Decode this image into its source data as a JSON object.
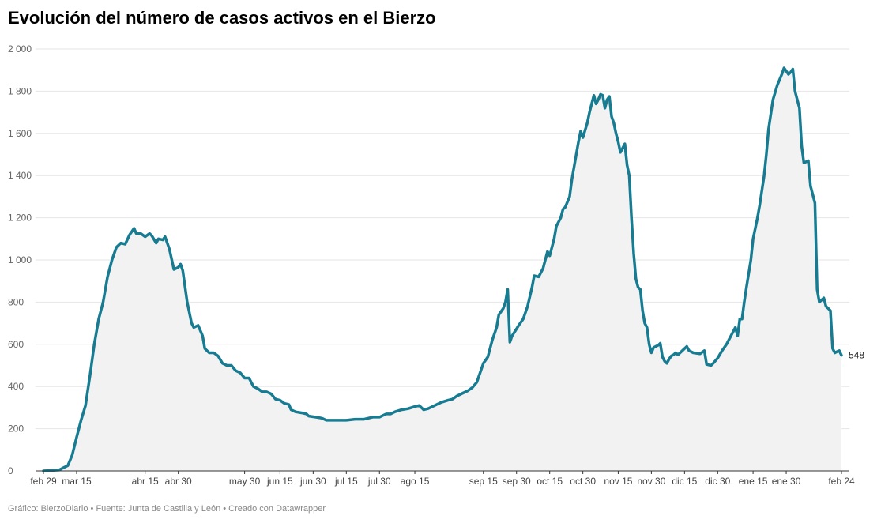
{
  "title": "Evolución del número de casos activos en el Bierzo",
  "footer": "Gráfico: BierzoDiario • Fuente: Junta de Castilla y León • Creado con Datawrapper",
  "colors": {
    "line": "#177b91",
    "area": "#f2f2f2",
    "grid": "#e6e6e6"
  },
  "chart_data": {
    "type": "area",
    "title": "Evolución del número de casos activos en el Bierzo",
    "xlabel": "",
    "ylabel": "",
    "ylim": [
      0,
      2000
    ],
    "y_ticks": [
      0,
      200,
      400,
      600,
      800,
      1000,
      1200,
      1400,
      1600,
      1800,
      2000
    ],
    "y_tick_labels": [
      "0",
      "200",
      "400",
      "600",
      "800",
      "1 000",
      "1 200",
      "1 400",
      "1 600",
      "1 800",
      "2 000"
    ],
    "x_ticks": [
      {
        "date": "2020-02-29",
        "label": "feb 29"
      },
      {
        "date": "2020-03-15",
        "label": "mar 15"
      },
      {
        "date": "2020-04-15",
        "label": "abr 15"
      },
      {
        "date": "2020-04-30",
        "label": "abr 30"
      },
      {
        "date": "2020-05-30",
        "label": "may 30"
      },
      {
        "date": "2020-06-15",
        "label": "jun 15"
      },
      {
        "date": "2020-06-30",
        "label": "jun 30"
      },
      {
        "date": "2020-07-15",
        "label": "jul 15"
      },
      {
        "date": "2020-07-30",
        "label": "jul 30"
      },
      {
        "date": "2020-08-15",
        "label": "ago 15"
      },
      {
        "date": "2020-09-15",
        "label": "sep 15"
      },
      {
        "date": "2020-09-30",
        "label": "sep 30"
      },
      {
        "date": "2020-10-15",
        "label": "oct 15"
      },
      {
        "date": "2020-10-30",
        "label": "oct 30"
      },
      {
        "date": "2020-11-15",
        "label": "nov 15"
      },
      {
        "date": "2020-11-30",
        "label": "nov 30"
      },
      {
        "date": "2020-12-15",
        "label": "dic 15"
      },
      {
        "date": "2020-12-30",
        "label": "dic 30"
      },
      {
        "date": "2021-01-15",
        "label": "ene 15"
      },
      {
        "date": "2021-01-30",
        "label": "ene 30"
      },
      {
        "date": "2021-02-24",
        "label": "feb 24"
      }
    ],
    "grid": true,
    "legend": "none",
    "end_label": "548",
    "series": [
      {
        "values": [
          [
            "2020-02-29",
            0
          ],
          [
            "2020-03-03",
            2
          ],
          [
            "2020-03-07",
            4
          ],
          [
            "2020-03-09",
            15
          ],
          [
            "2020-03-11",
            25
          ],
          [
            "2020-03-13",
            75
          ],
          [
            "2020-03-15",
            160
          ],
          [
            "2020-03-17",
            240
          ],
          [
            "2020-03-19",
            310
          ],
          [
            "2020-03-21",
            450
          ],
          [
            "2020-03-23",
            600
          ],
          [
            "2020-03-25",
            720
          ],
          [
            "2020-03-27",
            800
          ],
          [
            "2020-03-29",
            920
          ],
          [
            "2020-03-31",
            1000
          ],
          [
            "2020-04-02",
            1060
          ],
          [
            "2020-04-04",
            1080
          ],
          [
            "2020-04-06",
            1075
          ],
          [
            "2020-04-08",
            1120
          ],
          [
            "2020-04-10",
            1150
          ],
          [
            "2020-04-11",
            1125
          ],
          [
            "2020-04-13",
            1125
          ],
          [
            "2020-04-15",
            1110
          ],
          [
            "2020-04-17",
            1125
          ],
          [
            "2020-04-18",
            1115
          ],
          [
            "2020-04-20",
            1080
          ],
          [
            "2020-04-21",
            1100
          ],
          [
            "2020-04-23",
            1095
          ],
          [
            "2020-04-24",
            1110
          ],
          [
            "2020-04-26",
            1050
          ],
          [
            "2020-04-28",
            955
          ],
          [
            "2020-04-30",
            965
          ],
          [
            "2020-05-01",
            980
          ],
          [
            "2020-05-02",
            950
          ],
          [
            "2020-05-04",
            800
          ],
          [
            "2020-05-06",
            700
          ],
          [
            "2020-05-07",
            680
          ],
          [
            "2020-05-09",
            690
          ],
          [
            "2020-05-11",
            640
          ],
          [
            "2020-05-12",
            580
          ],
          [
            "2020-05-14",
            560
          ],
          [
            "2020-05-16",
            560
          ],
          [
            "2020-05-18",
            545
          ],
          [
            "2020-05-20",
            510
          ],
          [
            "2020-05-22",
            500
          ],
          [
            "2020-05-24",
            500
          ],
          [
            "2020-05-26",
            475
          ],
          [
            "2020-05-28",
            465
          ],
          [
            "2020-05-30",
            440
          ],
          [
            "2020-06-01",
            440
          ],
          [
            "2020-06-03",
            400
          ],
          [
            "2020-06-05",
            390
          ],
          [
            "2020-06-07",
            375
          ],
          [
            "2020-06-09",
            375
          ],
          [
            "2020-06-11",
            365
          ],
          [
            "2020-06-13",
            340
          ],
          [
            "2020-06-15",
            335
          ],
          [
            "2020-06-17",
            320
          ],
          [
            "2020-06-19",
            315
          ],
          [
            "2020-06-20",
            290
          ],
          [
            "2020-06-22",
            280
          ],
          [
            "2020-06-25",
            275
          ],
          [
            "2020-06-27",
            270
          ],
          [
            "2020-06-28",
            260
          ],
          [
            "2020-07-01",
            255
          ],
          [
            "2020-07-04",
            250
          ],
          [
            "2020-07-06",
            240
          ],
          [
            "2020-07-08",
            240
          ],
          [
            "2020-07-12",
            240
          ],
          [
            "2020-07-15",
            240
          ],
          [
            "2020-07-19",
            245
          ],
          [
            "2020-07-23",
            245
          ],
          [
            "2020-07-27",
            255
          ],
          [
            "2020-07-30",
            255
          ],
          [
            "2020-08-02",
            270
          ],
          [
            "2020-08-04",
            270
          ],
          [
            "2020-08-06",
            280
          ],
          [
            "2020-08-09",
            290
          ],
          [
            "2020-08-12",
            295
          ],
          [
            "2020-08-15",
            305
          ],
          [
            "2020-08-17",
            310
          ],
          [
            "2020-08-19",
            290
          ],
          [
            "2020-08-21",
            295
          ],
          [
            "2020-08-24",
            310
          ],
          [
            "2020-08-27",
            325
          ],
          [
            "2020-08-30",
            335
          ],
          [
            "2020-09-01",
            340
          ],
          [
            "2020-09-03",
            355
          ],
          [
            "2020-09-05",
            365
          ],
          [
            "2020-09-08",
            380
          ],
          [
            "2020-09-10",
            395
          ],
          [
            "2020-09-12",
            420
          ],
          [
            "2020-09-14",
            480
          ],
          [
            "2020-09-15",
            510
          ],
          [
            "2020-09-17",
            540
          ],
          [
            "2020-09-19",
            620
          ],
          [
            "2020-09-21",
            680
          ],
          [
            "2020-09-22",
            740
          ],
          [
            "2020-09-24",
            770
          ],
          [
            "2020-09-25",
            800
          ],
          [
            "2020-09-26",
            860
          ],
          [
            "2020-09-27",
            610
          ],
          [
            "2020-09-28",
            640
          ],
          [
            "2020-10-01",
            690
          ],
          [
            "2020-10-03",
            720
          ],
          [
            "2020-10-05",
            780
          ],
          [
            "2020-10-07",
            870
          ],
          [
            "2020-10-08",
            925
          ],
          [
            "2020-10-10",
            920
          ],
          [
            "2020-10-12",
            960
          ],
          [
            "2020-10-13",
            1000
          ],
          [
            "2020-10-14",
            1040
          ],
          [
            "2020-10-15",
            1020
          ],
          [
            "2020-10-17",
            1100
          ],
          [
            "2020-10-18",
            1160
          ],
          [
            "2020-10-20",
            1200
          ],
          [
            "2020-10-21",
            1240
          ],
          [
            "2020-10-22",
            1250
          ],
          [
            "2020-10-24",
            1300
          ],
          [
            "2020-10-25",
            1380
          ],
          [
            "2020-10-27",
            1500
          ],
          [
            "2020-10-28",
            1560
          ],
          [
            "2020-10-29",
            1610
          ],
          [
            "2020-10-30",
            1580
          ],
          [
            "2020-11-01",
            1650
          ],
          [
            "2020-11-02",
            1700
          ],
          [
            "2020-11-04",
            1780
          ],
          [
            "2020-11-05",
            1740
          ],
          [
            "2020-11-06",
            1760
          ],
          [
            "2020-11-07",
            1785
          ],
          [
            "2020-11-08",
            1780
          ],
          [
            "2020-11-09",
            1720
          ],
          [
            "2020-11-10",
            1760
          ],
          [
            "2020-11-11",
            1775
          ],
          [
            "2020-11-12",
            1680
          ],
          [
            "2020-11-13",
            1650
          ],
          [
            "2020-11-14",
            1600
          ],
          [
            "2020-11-15",
            1560
          ],
          [
            "2020-11-16",
            1510
          ],
          [
            "2020-11-18",
            1550
          ],
          [
            "2020-11-19",
            1450
          ],
          [
            "2020-11-20",
            1400
          ],
          [
            "2020-11-21",
            1200
          ],
          [
            "2020-11-22",
            1030
          ],
          [
            "2020-11-23",
            910
          ],
          [
            "2020-11-24",
            870
          ],
          [
            "2020-11-25",
            860
          ],
          [
            "2020-11-26",
            760
          ],
          [
            "2020-11-27",
            700
          ],
          [
            "2020-11-28",
            680
          ],
          [
            "2020-11-29",
            600
          ],
          [
            "2020-11-30",
            560
          ],
          [
            "2020-12-01",
            585
          ],
          [
            "2020-12-03",
            595
          ],
          [
            "2020-12-04",
            605
          ],
          [
            "2020-12-05",
            540
          ],
          [
            "2020-12-06",
            520
          ],
          [
            "2020-12-07",
            510
          ],
          [
            "2020-12-08",
            530
          ],
          [
            "2020-12-09",
            545
          ],
          [
            "2020-12-10",
            550
          ],
          [
            "2020-12-11",
            560
          ],
          [
            "2020-12-12",
            550
          ],
          [
            "2020-12-14",
            570
          ],
          [
            "2020-12-16",
            590
          ],
          [
            "2020-12-17",
            570
          ],
          [
            "2020-12-19",
            560
          ],
          [
            "2020-12-22",
            555
          ],
          [
            "2020-12-24",
            570
          ],
          [
            "2020-12-25",
            505
          ],
          [
            "2020-12-27",
            500
          ],
          [
            "2020-12-28",
            510
          ],
          [
            "2020-12-30",
            535
          ],
          [
            "2021-01-01",
            570
          ],
          [
            "2021-01-03",
            600
          ],
          [
            "2021-01-05",
            640
          ],
          [
            "2021-01-07",
            680
          ],
          [
            "2021-01-08",
            640
          ],
          [
            "2021-01-09",
            720
          ],
          [
            "2021-01-10",
            720
          ],
          [
            "2021-01-11",
            800
          ],
          [
            "2021-01-12",
            870
          ],
          [
            "2021-01-14",
            1000
          ],
          [
            "2021-01-15",
            1100
          ],
          [
            "2021-01-17",
            1200
          ],
          [
            "2021-01-18",
            1260
          ],
          [
            "2021-01-20",
            1400
          ],
          [
            "2021-01-21",
            1500
          ],
          [
            "2021-01-22",
            1620
          ],
          [
            "2021-01-24",
            1760
          ],
          [
            "2021-01-26",
            1830
          ],
          [
            "2021-01-28",
            1880
          ],
          [
            "2021-01-29",
            1910
          ],
          [
            "2021-01-30",
            1895
          ],
          [
            "2021-01-31",
            1880
          ],
          [
            "2021-02-01",
            1890
          ],
          [
            "2021-02-02",
            1905
          ],
          [
            "2021-02-03",
            1800
          ],
          [
            "2021-02-05",
            1720
          ],
          [
            "2021-02-06",
            1540
          ],
          [
            "2021-02-07",
            1460
          ],
          [
            "2021-02-08",
            1465
          ],
          [
            "2021-02-09",
            1470
          ],
          [
            "2021-02-10",
            1350
          ],
          [
            "2021-02-11",
            1310
          ],
          [
            "2021-02-12",
            1270
          ],
          [
            "2021-02-13",
            860
          ],
          [
            "2021-02-14",
            800
          ],
          [
            "2021-02-15",
            810
          ],
          [
            "2021-02-16",
            820
          ],
          [
            "2021-02-17",
            780
          ],
          [
            "2021-02-18",
            770
          ],
          [
            "2021-02-19",
            760
          ],
          [
            "2021-02-20",
            580
          ],
          [
            "2021-02-21",
            560
          ],
          [
            "2021-02-22",
            565
          ],
          [
            "2021-02-23",
            570
          ],
          [
            "2021-02-24",
            548
          ]
        ]
      }
    ]
  }
}
